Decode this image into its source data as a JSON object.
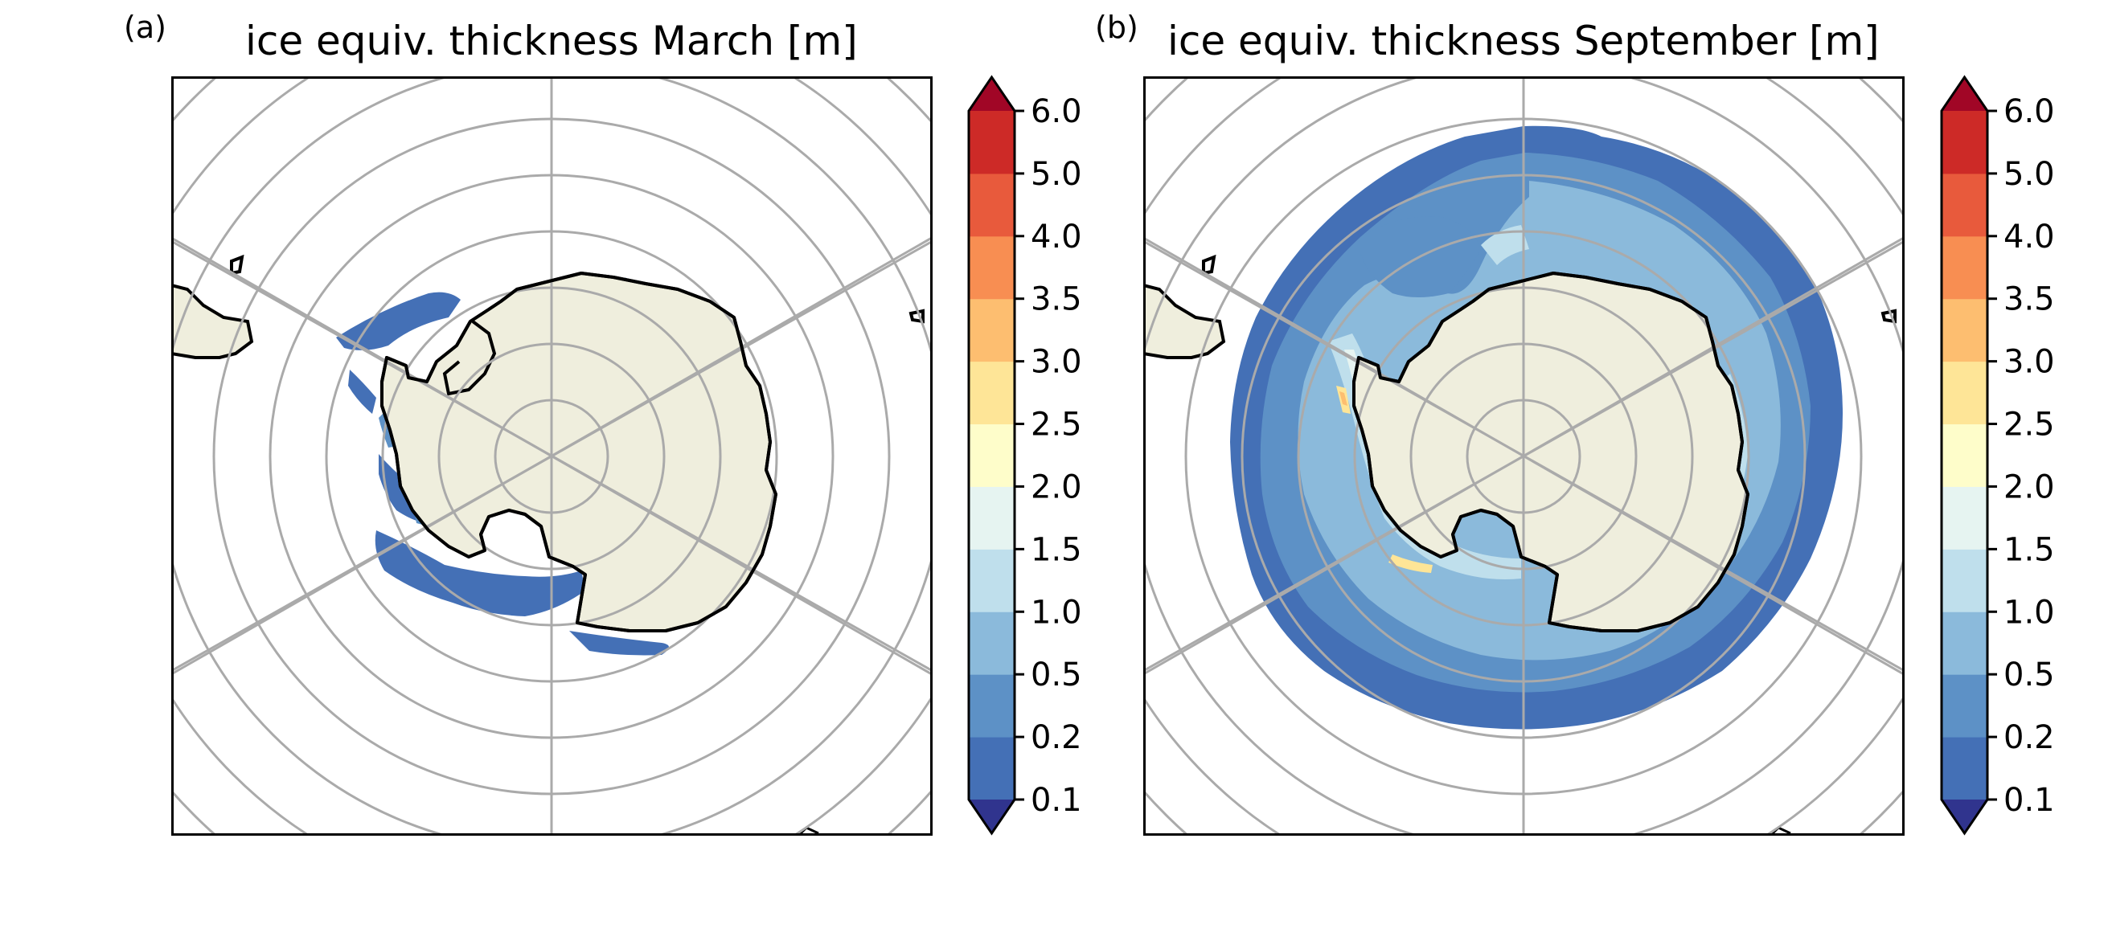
{
  "panels": [
    {
      "label": "(a)",
      "title": "ice equiv. thickness March [m]",
      "month": "March"
    },
    {
      "label": "(b)",
      "title": "ice equiv. thickness September [m]",
      "month": "September"
    }
  ],
  "colorbar": {
    "ticks": [
      "0.1",
      "0.2",
      "0.5",
      "1.0",
      "1.5",
      "2.0",
      "2.5",
      "3.0",
      "3.5",
      "4.0",
      "5.0",
      "6.0"
    ],
    "colors": [
      "#4470b6",
      "#5d91c6",
      "#8bbadb",
      "#bfdfec",
      "#e6f4f1",
      "#fefdca",
      "#fee597",
      "#fdbe70",
      "#f88e52",
      "#e85a3c",
      "#cd2a27"
    ],
    "under_color": "#30348e",
    "over_color": "#a10626",
    "extend": "both"
  },
  "map": {
    "projection": "south-polar-stereographic",
    "land_color": "#efeedd",
    "coast_color": "#000000",
    "gridline_color": "#aaaaaa"
  }
}
